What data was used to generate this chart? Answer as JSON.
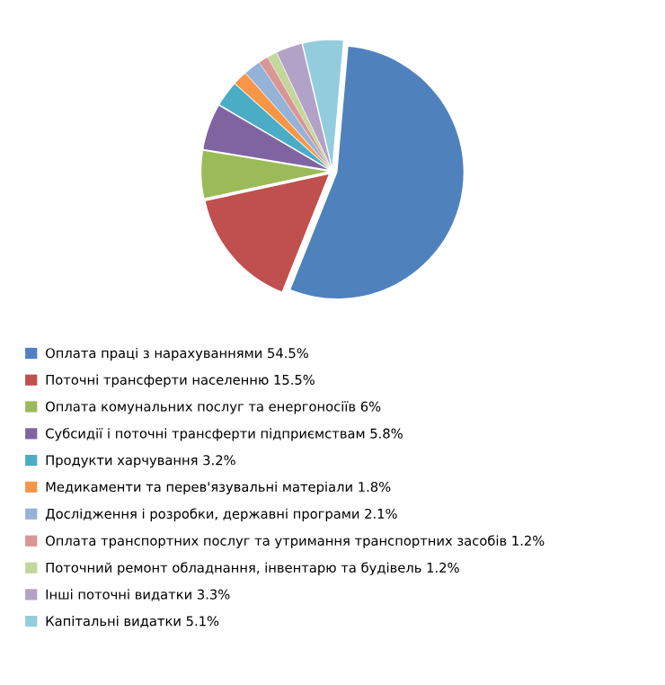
{
  "chart_data": {
    "type": "pie",
    "categories": [
      "Оплата праці з нарахуваннями",
      "Поточні трансферти населенню",
      "Оплата комунальних послуг та енергоносіїв",
      "Субсидії і поточні трансферти підприємствам",
      "Продукти харчування",
      "Медикаменти та перев'язувальні матеріали",
      "Дослідження і розробки, державні програми",
      "Оплата транспортних послуг та утримання транспортних засобів",
      "Поточний ремонт обладнання, інвентарю та будівель",
      "Інші поточні видатки",
      "Капітальні видатки"
    ],
    "values": [
      54.5,
      15.5,
      6,
      5.8,
      3.2,
      1.8,
      2.1,
      1.2,
      1.2,
      3.3,
      5.1
    ],
    "value_labels": [
      "54.5%",
      "15.5%",
      "6%",
      "5.8%",
      "3.2%",
      "1.8%",
      "2.1%",
      "1.2%",
      "1.2%",
      "3.3%",
      "5.1%"
    ],
    "colors": [
      "#4f81bd",
      "#c0504d",
      "#9bbb59",
      "#8064a2",
      "#4bacc6",
      "#f79646",
      "#95b3d7",
      "#d99694",
      "#c3d69b",
      "#b3a2c7",
      "#93cddd"
    ],
    "legend": "bottom"
  }
}
